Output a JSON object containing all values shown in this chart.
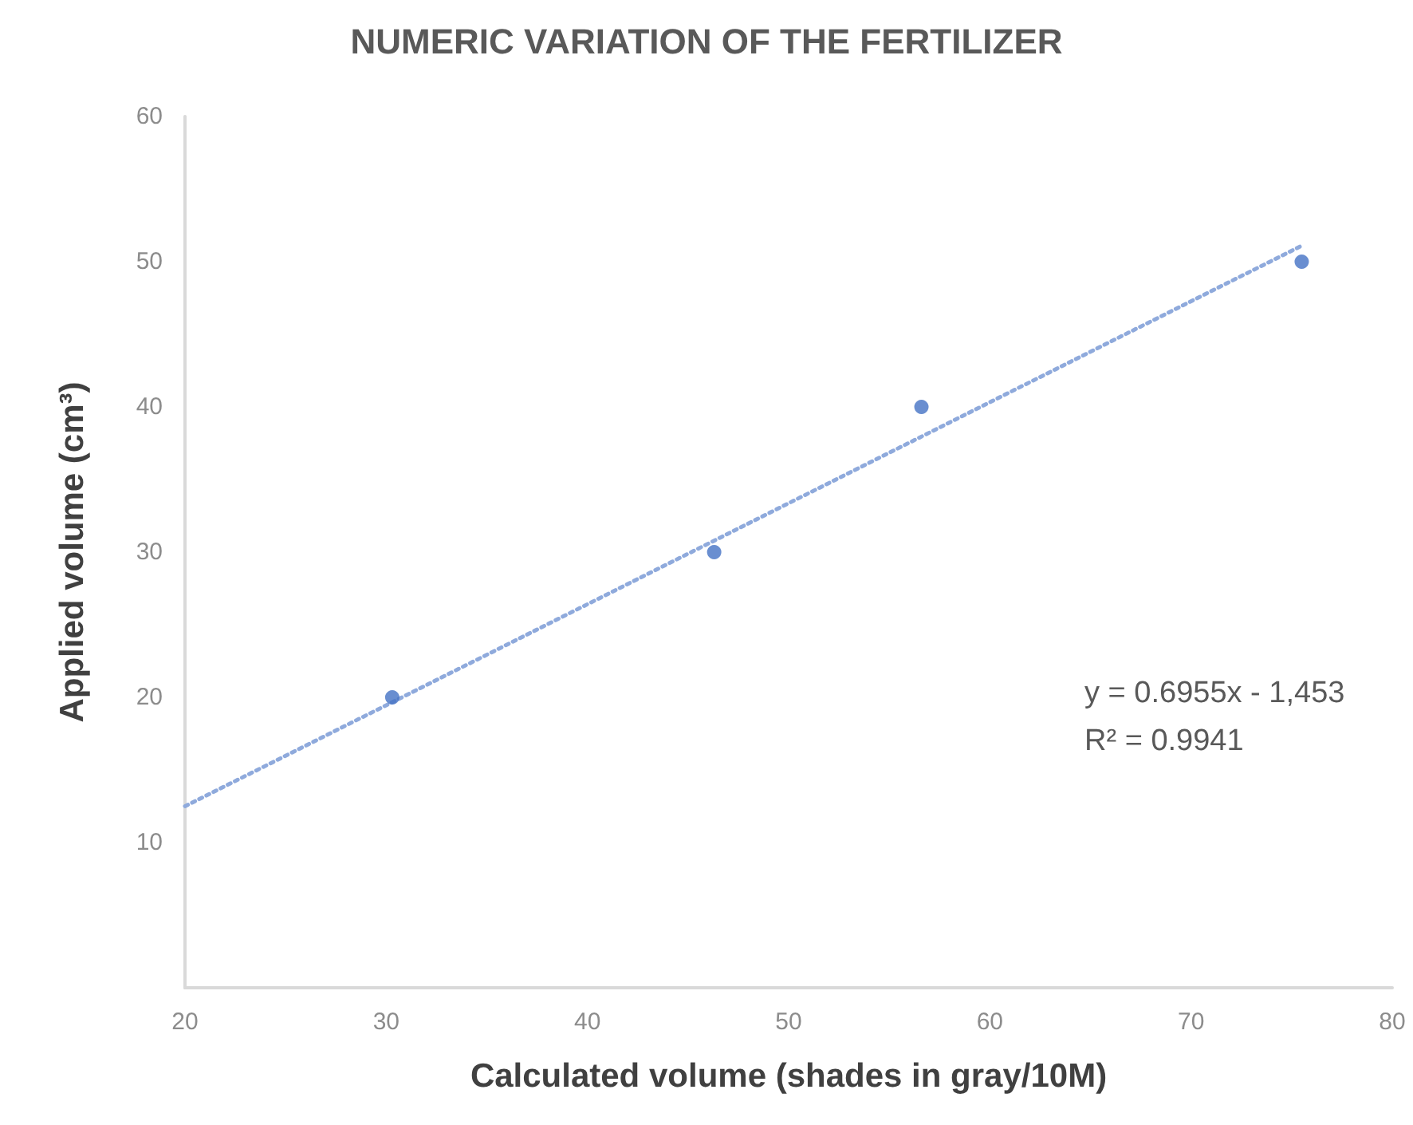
{
  "chart_data": {
    "type": "scatter",
    "title": "NUMERIC VARIATION OF THE FERTILIZER",
    "xlabel": "Calculated volume (shades in gray/10M)",
    "ylabel": "Applied volume (cm³)",
    "series": [
      {
        "color": "#4472c4",
        "x": [
          30.3,
          46.3,
          56.6,
          75.5
        ],
        "values": [
          20,
          30,
          40,
          50
        ],
        "marker": "circle"
      },
      {
        "type": "line",
        "color": "#8faadc",
        "x": [
          20,
          75.5
        ],
        "values": [
          12.5,
          51.1
        ],
        "line_style": "dotted",
        "marker": "none"
      }
    ],
    "xlim": [
      20,
      80
    ],
    "xticks": [
      20,
      30,
      40,
      50,
      60,
      70,
      80
    ],
    "ylim": [
      0,
      60
    ],
    "yticks": [
      10,
      20,
      30,
      40,
      50,
      60
    ],
    "grid": false,
    "annotations": [
      "y = 0.6955x - 1,453",
      "R² = 0.9941"
    ]
  }
}
